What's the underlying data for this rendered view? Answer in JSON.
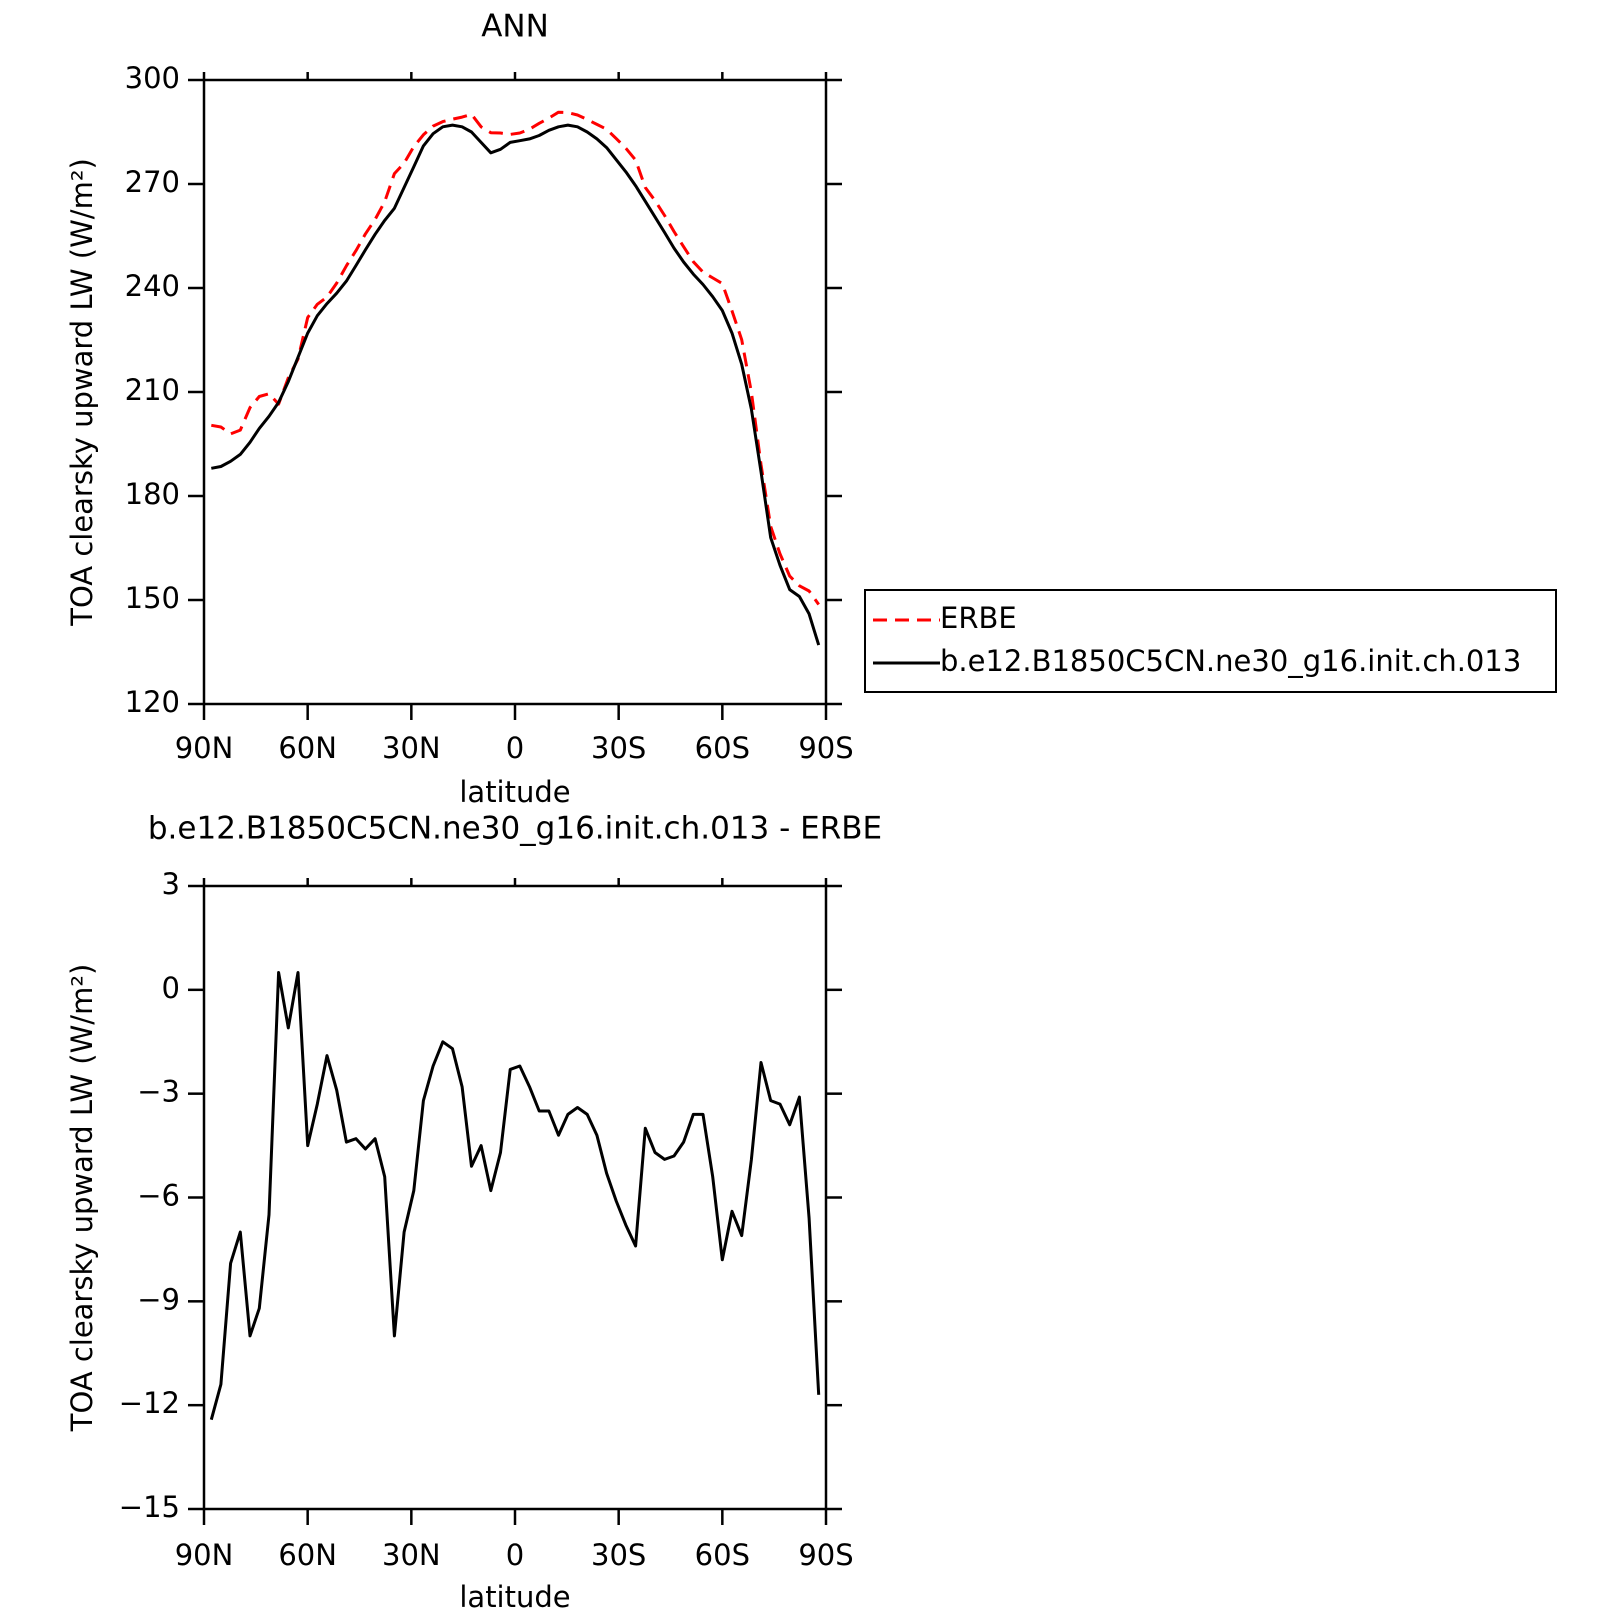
{
  "chart_data": [
    {
      "type": "line",
      "title": "ANN",
      "ylabel": "TOA clearsky upward LW (W/m²)",
      "xlabel": "latitude",
      "x": [
        87.9,
        85.1,
        82.3,
        79.5,
        76.7,
        74.0,
        71.2,
        68.4,
        65.6,
        62.8,
        60.0,
        57.2,
        54.4,
        51.6,
        48.8,
        46.0,
        43.3,
        40.5,
        37.7,
        34.9,
        32.1,
        29.3,
        26.5,
        23.7,
        20.9,
        18.1,
        15.3,
        12.6,
        9.8,
        7.0,
        4.2,
        1.4,
        -1.4,
        -4.2,
        -7.0,
        -9.8,
        -12.6,
        -15.3,
        -18.1,
        -20.9,
        -23.7,
        -26.5,
        -29.3,
        -32.1,
        -34.9,
        -37.7,
        -40.5,
        -43.3,
        -46.0,
        -48.8,
        -51.6,
        -54.4,
        -57.2,
        -60.0,
        -62.8,
        -65.6,
        -68.4,
        -71.2,
        -74.0,
        -76.7,
        -79.5,
        -82.3,
        -85.1,
        -87.9
      ],
      "xlim": [
        90,
        -90
      ],
      "xticks": [
        {
          "value": 90,
          "label": "90N"
        },
        {
          "value": 60,
          "label": "60N"
        },
        {
          "value": 30,
          "label": "30N"
        },
        0,
        {
          "value": -30,
          "label": "30S"
        },
        {
          "value": -60,
          "label": "60S"
        },
        {
          "value": -90,
          "label": "90S"
        }
      ],
      "ylim": [
        120,
        300
      ],
      "yticks": [
        120,
        150,
        180,
        210,
        240,
        270,
        300
      ],
      "legend": "right",
      "series": [
        {
          "name": "ERBE",
          "color": "#ff0000",
          "linestyle": "dashed",
          "values": [
            200.4,
            199.9,
            197.9,
            199,
            205.5,
            208.7,
            209.5,
            206.5,
            214.1,
            219.5,
            231.5,
            235.3,
            237.4,
            241.4,
            246.4,
            250.8,
            255.6,
            259.8,
            264.9,
            273,
            276,
            280.8,
            284.2,
            286.7,
            288,
            288.7,
            289.3,
            290.1,
            286.5,
            284.8,
            284.7,
            284.3,
            284.7,
            285.8,
            287.5,
            289,
            290.7,
            290.6,
            289.9,
            288.6,
            287.2,
            285.8,
            283.1,
            280.3,
            276.9,
            269,
            265.2,
            260.9,
            256.3,
            251.9,
            247.6,
            244.6,
            242.9,
            241.3,
            233.4,
            225.1,
            209.9,
            189.1,
            171.2,
            163.3,
            156.9,
            154.1,
            152.6,
            148.7
          ]
        },
        {
          "name": "b.e12.B1850C5CN.ne30_g16.init.ch.013",
          "color": "#000000",
          "linestyle": "solid",
          "values": [
            188,
            188.5,
            190,
            192,
            195.5,
            199.5,
            203,
            207,
            213,
            220,
            227,
            232,
            235.5,
            238.5,
            242,
            246.5,
            251,
            255.5,
            259.5,
            263,
            269,
            275,
            281,
            284.5,
            286.5,
            287,
            286.5,
            285,
            282,
            279,
            280,
            282,
            282.5,
            283,
            284,
            285.5,
            286.5,
            287,
            286.5,
            285,
            283,
            280.5,
            277,
            273.5,
            269.5,
            265,
            260.5,
            256,
            251.5,
            247.5,
            244,
            241,
            237.5,
            233.5,
            227,
            218,
            205,
            187,
            168,
            160,
            153,
            151,
            146,
            137
          ]
        }
      ]
    },
    {
      "type": "line",
      "title": "b.e12.B1850C5CN.ne30_g16.init.ch.013 - ERBE",
      "ylabel": "TOA clearsky upward LW (W/m²)",
      "xlabel": "latitude",
      "x": [
        87.9,
        85.1,
        82.3,
        79.5,
        76.7,
        74.0,
        71.2,
        68.4,
        65.6,
        62.8,
        60.0,
        57.2,
        54.4,
        51.6,
        48.8,
        46.0,
        43.3,
        40.5,
        37.7,
        34.9,
        32.1,
        29.3,
        26.5,
        23.7,
        20.9,
        18.1,
        15.3,
        12.6,
        9.8,
        7.0,
        4.2,
        1.4,
        -1.4,
        -4.2,
        -7.0,
        -9.8,
        -12.6,
        -15.3,
        -18.1,
        -20.9,
        -23.7,
        -26.5,
        -29.3,
        -32.1,
        -34.9,
        -37.7,
        -40.5,
        -43.3,
        -46.0,
        -48.8,
        -51.6,
        -54.4,
        -57.2,
        -60.0,
        -62.8,
        -65.6,
        -68.4,
        -71.2,
        -74.0,
        -76.7,
        -79.5,
        -82.3,
        -85.1,
        -87.9
      ],
      "xlim": [
        90,
        -90
      ],
      "xticks": [
        {
          "value": 90,
          "label": "90N"
        },
        {
          "value": 60,
          "label": "60N"
        },
        {
          "value": 30,
          "label": "30N"
        },
        0,
        {
          "value": -30,
          "label": "30S"
        },
        {
          "value": -60,
          "label": "60S"
        },
        {
          "value": -90,
          "label": "90S"
        }
      ],
      "ylim": [
        -15,
        3
      ],
      "yticks": [
        {
          "value": -15,
          "label": "−15"
        },
        {
          "value": -12,
          "label": "−12"
        },
        {
          "value": -9,
          "label": "−9"
        },
        {
          "value": -6,
          "label": "−6"
        },
        {
          "value": -3,
          "label": "−3"
        },
        0,
        3
      ],
      "series": [
        {
          "color": "#000000",
          "linestyle": "solid",
          "values": [
            -12.42,
            -11.4,
            -7.9,
            -7.0,
            -10.0,
            -9.2,
            -6.5,
            0.5,
            -1.1,
            0.5,
            -4.5,
            -3.3,
            -1.9,
            -2.9,
            -4.4,
            -4.3,
            -4.6,
            -4.3,
            -5.4,
            -10.0,
            -7.0,
            -5.8,
            -3.2,
            -2.2,
            -1.5,
            -1.7,
            -2.8,
            -5.1,
            -4.5,
            -5.8,
            -4.7,
            -2.3,
            -2.2,
            -2.8,
            -3.5,
            -3.5,
            -4.2,
            -3.6,
            -3.4,
            -3.6,
            -4.2,
            -5.3,
            -6.1,
            -6.8,
            -7.4,
            -4.0,
            -4.7,
            -4.9,
            -4.8,
            -4.4,
            -3.6,
            -3.6,
            -5.4,
            -7.8,
            -6.4,
            -7.1,
            -4.9,
            -2.1,
            -3.2,
            -3.3,
            -3.9,
            -3.1,
            -6.6,
            -11.7
          ]
        }
      ]
    }
  ]
}
